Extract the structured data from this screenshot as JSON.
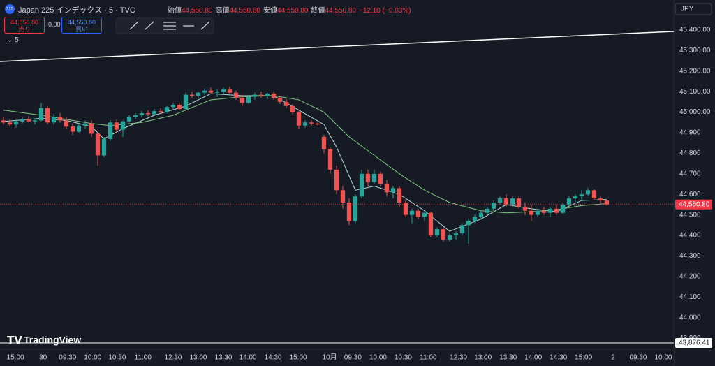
{
  "ui": {
    "badge": "225",
    "symbol": "Japan 225 インデックス · 5 · TVC",
    "ohlc": [
      {
        "label": "始値",
        "value": "44,550.80"
      },
      {
        "label": "高値",
        "value": "44,550.80"
      },
      {
        "label": "安値",
        "value": "44,550.80"
      },
      {
        "label": "終値",
        "value": "44,550.80"
      }
    ],
    "change": "−12.10 (−0.03%)",
    "sell": {
      "price": "44,550.80",
      "label": "売り"
    },
    "spread": "0.00",
    "buy": {
      "price": "44,550.80",
      "label": "買い"
    },
    "indicator_toggle": "5",
    "currency": "JPY",
    "brand": "TradingView"
  },
  "chart_data": {
    "type": "candlestick",
    "up_color": "#26a69a",
    "down_color": "#ef5350",
    "xlim": [
      -0.556,
      106.67
    ],
    "ylim": [
      43863,
      45546
    ],
    "grid": false,
    "yticks": [
      {
        "value": 43900,
        "label": "43,900"
      },
      {
        "value": 44000,
        "label": "44,000"
      },
      {
        "value": 44100,
        "label": "44,100"
      },
      {
        "value": 44200,
        "label": "44,200"
      },
      {
        "value": 44300,
        "label": "44,300"
      },
      {
        "value": 44400,
        "label": "44,400"
      },
      {
        "value": 44500,
        "label": "44,500"
      },
      {
        "value": 44600,
        "label": "44,600"
      },
      {
        "value": 44700,
        "label": "44,700"
      },
      {
        "value": 44800,
        "label": "44,800"
      },
      {
        "value": 44900,
        "label": "44,900"
      },
      {
        "value": 45000,
        "label": "45,000.00"
      },
      {
        "value": 45100,
        "label": "45,100.00"
      },
      {
        "value": 45200,
        "label": "45,200.00"
      },
      {
        "value": 45300,
        "label": "45,300.00"
      },
      {
        "value": 45400,
        "label": "45,400.00"
      }
    ],
    "xticks": [
      {
        "value": 1.9,
        "label": "15:00"
      },
      {
        "value": 6.3,
        "label": "30"
      },
      {
        "value": 10.2,
        "label": "09:30"
      },
      {
        "value": 14.2,
        "label": "10:00"
      },
      {
        "value": 18.1,
        "label": "10:30"
      },
      {
        "value": 22.2,
        "label": "11:00"
      },
      {
        "value": 27,
        "label": "12:30"
      },
      {
        "value": 31,
        "label": "13:00"
      },
      {
        "value": 35,
        "label": "13:30"
      },
      {
        "value": 38.9,
        "label": "14:00"
      },
      {
        "value": 42.9,
        "label": "14:30"
      },
      {
        "value": 46.9,
        "label": "15:00"
      },
      {
        "value": 51.9,
        "label": "10月"
      },
      {
        "value": 55.6,
        "label": "09:30"
      },
      {
        "value": 59.6,
        "label": "10:00"
      },
      {
        "value": 63.6,
        "label": "10:30"
      },
      {
        "value": 67.6,
        "label": "11:00"
      },
      {
        "value": 72.4,
        "label": "12:30"
      },
      {
        "value": 76.3,
        "label": "13:00"
      },
      {
        "value": 80.3,
        "label": "13:30"
      },
      {
        "value": 84.3,
        "label": "14:00"
      },
      {
        "value": 88.3,
        "label": "14:30"
      },
      {
        "value": 92.3,
        "label": "15:00"
      },
      {
        "value": 97,
        "label": "2"
      },
      {
        "value": 101,
        "label": "09:30"
      },
      {
        "value": 105,
        "label": "10:00"
      }
    ],
    "candles": [
      [
        44960,
        44975,
        44940,
        44950
      ],
      [
        44950,
        44965,
        44930,
        44940
      ],
      [
        44940,
        44960,
        44925,
        44955
      ],
      [
        44955,
        44975,
        44945,
        44965
      ],
      [
        44965,
        44980,
        44950,
        44955
      ],
      [
        44955,
        44970,
        44940,
        44960
      ],
      [
        44960,
        45045,
        44955,
        45020
      ],
      [
        45020,
        45030,
        44940,
        44950
      ],
      [
        44950,
        44990,
        44940,
        44975
      ],
      [
        44975,
        44995,
        44950,
        44960
      ],
      [
        44960,
        44975,
        44920,
        44930
      ],
      [
        44930,
        44945,
        44890,
        44905
      ],
      [
        44905,
        44945,
        44900,
        44935
      ],
      [
        44935,
        44960,
        44920,
        44945
      ],
      [
        44945,
        44960,
        44880,
        44895
      ],
      [
        44895,
        44900,
        44740,
        44790
      ],
      [
        44790,
        44880,
        44780,
        44870
      ],
      [
        44870,
        44960,
        44860,
        44950
      ],
      [
        44950,
        44965,
        44900,
        44915
      ],
      [
        44915,
        44960,
        44880,
        44955
      ],
      [
        44955,
        44985,
        44950,
        44975
      ],
      [
        44975,
        44995,
        44965,
        44985
      ],
      [
        44985,
        45005,
        44975,
        44995
      ],
      [
        44995,
        45010,
        44980,
        44990
      ],
      [
        44990,
        45015,
        44985,
        45005
      ],
      [
        45005,
        45020,
        44990,
        45000
      ],
      [
        45000,
        45030,
        44995,
        45025
      ],
      [
        45025,
        45045,
        45015,
        45035
      ],
      [
        45035,
        45045,
        45010,
        45015
      ],
      [
        45015,
        45095,
        45010,
        45085
      ],
      [
        45085,
        45100,
        45070,
        45080
      ],
      [
        45080,
        45100,
        45065,
        45095
      ],
      [
        45095,
        45115,
        45085,
        45105
      ],
      [
        45105,
        45120,
        45090,
        45095
      ],
      [
        45095,
        45110,
        45075,
        45100
      ],
      [
        45100,
        45120,
        45085,
        45110
      ],
      [
        45110,
        45125,
        45090,
        45095
      ],
      [
        45095,
        45105,
        45060,
        45070
      ],
      [
        45070,
        45085,
        45030,
        45045
      ],
      [
        45045,
        45080,
        45040,
        45075
      ],
      [
        45075,
        45095,
        45060,
        45085
      ],
      [
        45085,
        45100,
        45070,
        45080
      ],
      [
        45080,
        45095,
        45065,
        45090
      ],
      [
        45090,
        45100,
        45060,
        45070
      ],
      [
        45070,
        45080,
        45040,
        45050
      ],
      [
        45050,
        45065,
        45020,
        45030
      ],
      [
        45030,
        45040,
        44990,
        45000
      ],
      [
        45000,
        45010,
        44920,
        44935
      ],
      [
        44935,
        44960,
        44925,
        44950
      ],
      [
        44950,
        44960,
        44935,
        44945
      ],
      [
        44945,
        44950,
        44935,
        44940
      ],
      [
        44880,
        44890,
        44800,
        44820
      ],
      [
        44820,
        44830,
        44700,
        44720
      ],
      [
        44720,
        44740,
        44600,
        44620
      ],
      [
        44620,
        44640,
        44530,
        44560
      ],
      [
        44560,
        44580,
        44450,
        44470
      ],
      [
        44470,
        44600,
        44460,
        44590
      ],
      [
        44590,
        44720,
        44580,
        44700
      ],
      [
        44700,
        44720,
        44640,
        44660
      ],
      [
        44660,
        44720,
        44650,
        44700
      ],
      [
        44700,
        44710,
        44640,
        44650
      ],
      [
        44650,
        44670,
        44590,
        44610
      ],
      [
        44610,
        44640,
        44580,
        44630
      ],
      [
        44630,
        44640,
        44540,
        44560
      ],
      [
        44560,
        44570,
        44490,
        44500
      ],
      [
        44500,
        44530,
        44460,
        44520
      ],
      [
        44520,
        44530,
        44480,
        44490
      ],
      [
        44490,
        44520,
        44470,
        44510
      ],
      [
        44510,
        44515,
        44390,
        44400
      ],
      [
        44400,
        44440,
        44390,
        44430
      ],
      [
        44430,
        44440,
        44370,
        44380
      ],
      [
        44380,
        44410,
        44370,
        44400
      ],
      [
        44400,
        44420,
        44380,
        44410
      ],
      [
        44410,
        44460,
        44400,
        44450
      ],
      [
        44450,
        44480,
        44360,
        44470
      ],
      [
        44470,
        44500,
        44460,
        44490
      ],
      [
        44490,
        44520,
        44480,
        44510
      ],
      [
        44510,
        44540,
        44500,
        44530
      ],
      [
        44530,
        44570,
        44520,
        44560
      ],
      [
        44560,
        44590,
        44550,
        44580
      ],
      [
        44580,
        44600,
        44540,
        44550
      ],
      [
        44550,
        44590,
        44540,
        44580
      ],
      [
        44580,
        44590,
        44530,
        44540
      ],
      [
        44540,
        44560,
        44500,
        44520
      ],
      [
        44520,
        44550,
        44470,
        44500
      ],
      [
        44500,
        44530,
        44490,
        44520
      ],
      [
        44520,
        44540,
        44500,
        44510
      ],
      [
        44510,
        44540,
        44490,
        44530
      ],
      [
        44530,
        44550,
        44500,
        44510
      ],
      [
        44510,
        44560,
        44505,
        44550
      ],
      [
        44550,
        44590,
        44540,
        44580
      ],
      [
        44580,
        44600,
        44560,
        44590
      ],
      [
        44590,
        44620,
        44570,
        44600
      ],
      [
        44600,
        44630,
        44590,
        44620
      ],
      [
        44620,
        44625,
        44570,
        44580
      ],
      [
        44580,
        44590,
        44555,
        44570
      ],
      [
        44570,
        44575,
        44545,
        44550.8
      ]
    ],
    "overlays": [
      {
        "color": "#b2dfdb",
        "x": [
          0,
          6,
          10,
          14,
          16,
          19,
          24,
          29,
          33,
          38,
          43,
          47,
          51,
          53,
          56,
          59,
          63,
          67,
          71,
          76,
          80,
          84,
          88,
          92,
          96
        ],
        "values": [
          44955,
          44970,
          44960,
          44930,
          44870,
          44920,
          44985,
          45030,
          45090,
          45080,
          45080,
          45010,
          44940,
          44830,
          44620,
          44640,
          44600,
          44520,
          44420,
          44480,
          44550,
          44530,
          44515,
          44570,
          44575
        ]
      },
      {
        "color": "#81c784",
        "x": [
          0,
          6,
          14,
          17,
          22,
          27,
          33,
          38,
          43,
          47,
          51,
          55,
          59,
          63,
          67,
          71,
          76,
          80,
          84,
          88,
          92,
          96
        ],
        "values": [
          45010,
          44985,
          44945,
          44935,
          44950,
          44985,
          45060,
          45075,
          45080,
          45060,
          45000,
          44880,
          44790,
          44700,
          44620,
          44560,
          44520,
          44510,
          44515,
          44525,
          44545,
          44555
        ]
      }
    ],
    "trend_line": {
      "color": "#ffffff",
      "x": [
        -0.556,
        106.67
      ],
      "values": [
        45247,
        45393
      ]
    },
    "last_price": {
      "value": 44550.8,
      "label": "44,550.80",
      "color": "#f23645"
    },
    "base_line": {
      "value": 43876.41,
      "label": "43,876.41",
      "color": "#ffffff"
    }
  }
}
